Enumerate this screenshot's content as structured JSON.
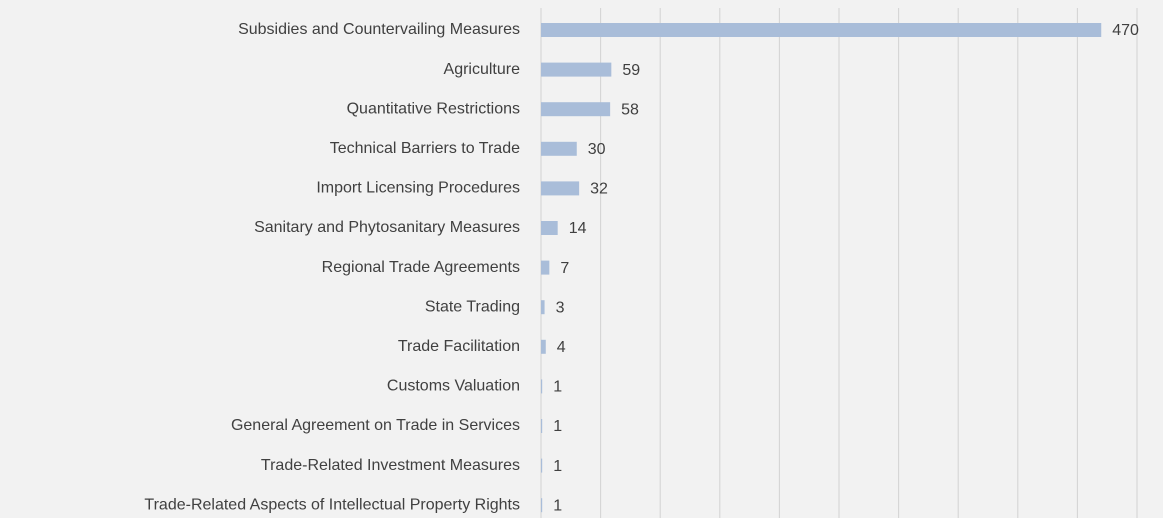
{
  "chart_data": {
    "type": "hbar",
    "categories": [
      "Subsidies and Countervailing Measures",
      "Agriculture",
      "Quantitative Restrictions",
      "Technical Barriers to Trade",
      "Import Licensing Procedures",
      "Sanitary and Phytosanitary Measures",
      "Regional Trade Agreements",
      "State Trading",
      "Trade Facilitation",
      "Customs Valuation",
      "General Agreement on Trade in Services",
      "Trade-Related Investment Measures",
      "Trade-Related Aspects of Intellectual Property Rights"
    ],
    "values": [
      470,
      59,
      58,
      30,
      32,
      14,
      7,
      3,
      4,
      1,
      1,
      1,
      1
    ],
    "color": "#a9bdd9",
    "xlim": [
      0,
      500
    ],
    "xticks": [
      0,
      50,
      100,
      150,
      200,
      250,
      300,
      350,
      400,
      450,
      500
    ],
    "grid": true
  }
}
